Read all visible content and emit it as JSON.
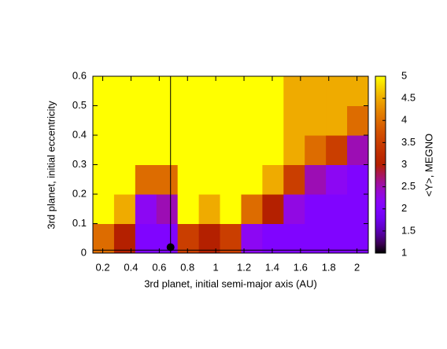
{
  "chart_data": {
    "type": "heatmap",
    "xlabel": "3rd planet, initial semi-major axis (AU)",
    "ylabel": "3rd planet, initial eccentricity",
    "colorbar_label": "<Y>, MEGNO",
    "colormap": "gnuplot",
    "xlim": [
      0.13,
      2.08
    ],
    "ylim": [
      0,
      0.6
    ],
    "clim": [
      1,
      5
    ],
    "xticks": [
      0.2,
      0.4,
      0.6,
      0.8,
      1,
      1.2,
      1.4,
      1.6,
      1.8,
      2
    ],
    "yticks": [
      0,
      0.1,
      0.2,
      0.3,
      0.4,
      0.5,
      0.6
    ],
    "cticks": [
      1,
      1.5,
      2,
      2.5,
      3,
      3.5,
      4,
      4.5,
      5
    ],
    "x_edges": [
      0.13,
      0.28,
      0.43,
      0.58,
      0.73,
      0.88,
      1.03,
      1.18,
      1.33,
      1.48,
      1.63,
      1.78,
      1.93,
      2.08
    ],
    "y_edges": [
      0,
      0.1,
      0.2,
      0.3,
      0.4,
      0.5,
      0.6
    ],
    "z": [
      [
        4,
        3,
        2,
        2,
        3.5,
        3,
        3.5,
        2.2,
        2,
        2,
        2,
        2,
        2
      ],
      [
        5,
        4.5,
        2.2,
        2.5,
        5,
        4.5,
        5,
        4,
        3,
        2.3,
        2,
        2,
        2
      ],
      [
        5,
        5,
        4,
        4,
        5,
        5,
        5,
        5,
        4.5,
        3.5,
        2.5,
        2.2,
        2
      ],
      [
        5,
        5,
        5,
        5,
        5,
        5,
        5,
        5,
        5,
        4.5,
        4,
        3.5,
        2.5
      ],
      [
        5,
        5,
        5,
        5,
        5,
        5,
        5,
        5,
        5,
        4.5,
        4.5,
        4.5,
        4
      ],
      [
        5,
        5,
        5,
        5,
        5,
        5,
        5,
        5,
        5,
        4.5,
        4.5,
        4.5,
        4.5
      ]
    ],
    "marker": {
      "x": 0.68,
      "y": 0.02
    },
    "vline": 0.68,
    "hline": 0.01
  }
}
